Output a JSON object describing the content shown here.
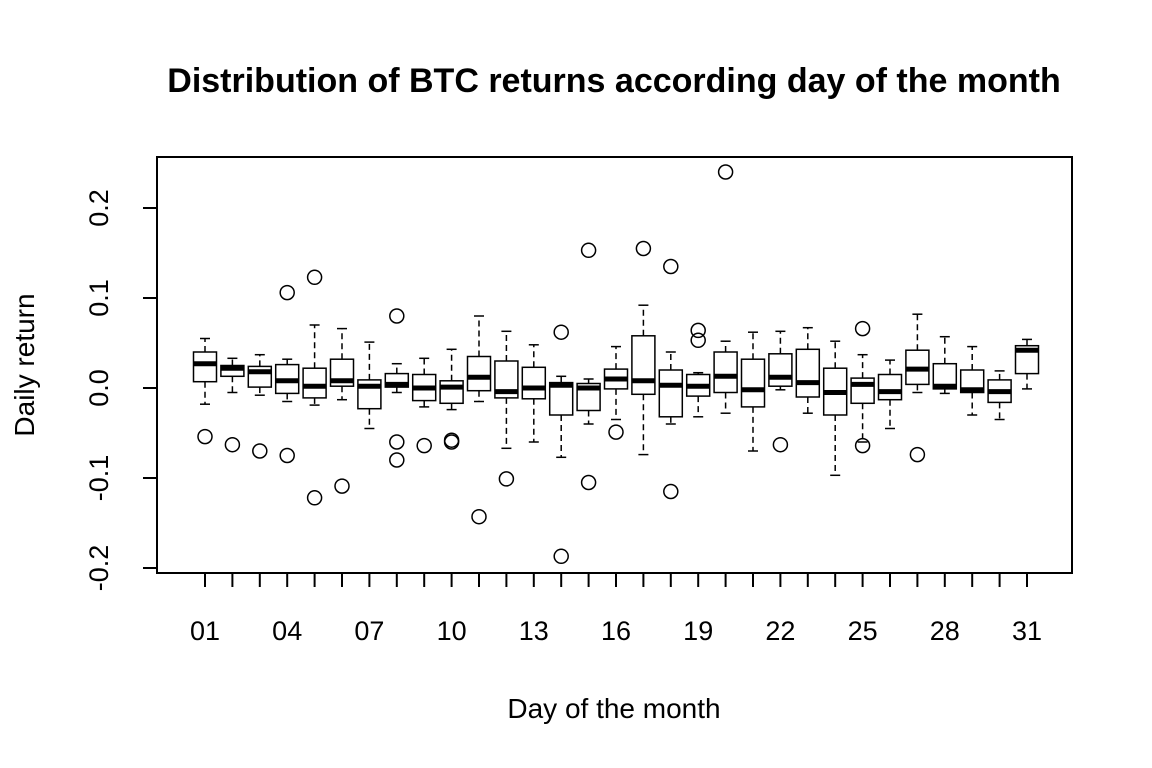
{
  "chart_data": {
    "type": "boxplot",
    "title": "Distribution of BTC returns according day of the month",
    "xlabel": "Day of the month",
    "ylabel": "Daily return",
    "ylim": [
      -0.2,
      0.24
    ],
    "y_ticks": [
      "-0.2",
      "-0.1",
      "0.0",
      "0.1",
      "0.2"
    ],
    "y_tick_values": [
      -0.2,
      -0.1,
      0.0,
      0.1,
      0.2
    ],
    "x_tick_labels": [
      "01",
      "04",
      "07",
      "10",
      "13",
      "16",
      "19",
      "22",
      "25",
      "28",
      "31"
    ],
    "legend": "none",
    "grid": false,
    "boxes": [
      {
        "day": "01",
        "wlo": -0.018,
        "q1": 0.007,
        "med": 0.027,
        "q3": 0.04,
        "whi": 0.055,
        "outliers": [
          -0.054
        ]
      },
      {
        "day": "02",
        "wlo": -0.005,
        "q1": 0.013,
        "med": 0.022,
        "q3": 0.025,
        "whi": 0.033,
        "outliers": [
          -0.063
        ]
      },
      {
        "day": "03",
        "wlo": -0.008,
        "q1": 0.001,
        "med": 0.018,
        "q3": 0.024,
        "whi": 0.037,
        "outliers": [
          -0.07
        ]
      },
      {
        "day": "04",
        "wlo": -0.015,
        "q1": -0.006,
        "med": 0.008,
        "q3": 0.026,
        "whi": 0.032,
        "outliers": [
          0.106,
          -0.075
        ]
      },
      {
        "day": "05",
        "wlo": -0.019,
        "q1": -0.011,
        "med": 0.002,
        "q3": 0.022,
        "whi": 0.07,
        "outliers": [
          0.123,
          -0.122
        ]
      },
      {
        "day": "06",
        "wlo": -0.013,
        "q1": 0.002,
        "med": 0.008,
        "q3": 0.032,
        "whi": 0.066,
        "outliers": [
          -0.109
        ]
      },
      {
        "day": "07",
        "wlo": -0.045,
        "q1": -0.023,
        "med": 0.002,
        "q3": 0.009,
        "whi": 0.051,
        "outliers": []
      },
      {
        "day": "08",
        "wlo": -0.005,
        "q1": 0.001,
        "med": 0.004,
        "q3": 0.016,
        "whi": 0.027,
        "outliers": [
          0.08,
          -0.06,
          -0.08
        ]
      },
      {
        "day": "09",
        "wlo": -0.021,
        "q1": -0.014,
        "med": 0.0,
        "q3": 0.015,
        "whi": 0.033,
        "outliers": [
          -0.064
        ]
      },
      {
        "day": "10",
        "wlo": -0.024,
        "q1": -0.017,
        "med": 0.001,
        "q3": 0.008,
        "whi": 0.043,
        "outliers": [
          -0.058,
          -0.06
        ]
      },
      {
        "day": "11",
        "wlo": -0.015,
        "q1": -0.003,
        "med": 0.012,
        "q3": 0.035,
        "whi": 0.08,
        "outliers": [
          -0.143
        ]
      },
      {
        "day": "12",
        "wlo": -0.067,
        "q1": -0.011,
        "med": -0.004,
        "q3": 0.03,
        "whi": 0.063,
        "outliers": [
          -0.101
        ]
      },
      {
        "day": "13",
        "wlo": -0.06,
        "q1": -0.012,
        "med": 0.0,
        "q3": 0.023,
        "whi": 0.048,
        "outliers": []
      },
      {
        "day": "14",
        "wlo": -0.077,
        "q1": -0.03,
        "med": 0.003,
        "q3": 0.006,
        "whi": 0.013,
        "outliers": [
          0.062,
          -0.187
        ]
      },
      {
        "day": "15",
        "wlo": -0.04,
        "q1": -0.025,
        "med": 0.0,
        "q3": 0.005,
        "whi": 0.01,
        "outliers": [
          0.153,
          -0.105
        ]
      },
      {
        "day": "16",
        "wlo": -0.035,
        "q1": -0.001,
        "med": 0.01,
        "q3": 0.021,
        "whi": 0.046,
        "outliers": [
          -0.049
        ]
      },
      {
        "day": "17",
        "wlo": -0.074,
        "q1": -0.007,
        "med": 0.008,
        "q3": 0.058,
        "whi": 0.092,
        "outliers": [
          0.155
        ]
      },
      {
        "day": "18",
        "wlo": -0.04,
        "q1": -0.032,
        "med": 0.003,
        "q3": 0.02,
        "whi": 0.04,
        "outliers": [
          0.135,
          -0.115
        ]
      },
      {
        "day": "19",
        "wlo": -0.032,
        "q1": -0.009,
        "med": 0.002,
        "q3": 0.015,
        "whi": 0.017,
        "outliers": [
          0.064,
          0.053
        ]
      },
      {
        "day": "20",
        "wlo": -0.028,
        "q1": -0.005,
        "med": 0.013,
        "q3": 0.04,
        "whi": 0.052,
        "outliers": [
          0.24
        ]
      },
      {
        "day": "21",
        "wlo": -0.07,
        "q1": -0.021,
        "med": -0.002,
        "q3": 0.032,
        "whi": 0.062,
        "outliers": []
      },
      {
        "day": "22",
        "wlo": -0.002,
        "q1": 0.002,
        "med": 0.012,
        "q3": 0.038,
        "whi": 0.063,
        "outliers": [
          -0.063
        ]
      },
      {
        "day": "23",
        "wlo": -0.028,
        "q1": -0.01,
        "med": 0.006,
        "q3": 0.043,
        "whi": 0.067,
        "outliers": []
      },
      {
        "day": "24",
        "wlo": -0.097,
        "q1": -0.03,
        "med": -0.005,
        "q3": 0.022,
        "whi": 0.052,
        "outliers": []
      },
      {
        "day": "25",
        "wlo": -0.06,
        "q1": -0.017,
        "med": 0.004,
        "q3": 0.011,
        "whi": 0.037,
        "outliers": [
          0.066,
          -0.064
        ]
      },
      {
        "day": "26",
        "wlo": -0.045,
        "q1": -0.013,
        "med": -0.004,
        "q3": 0.015,
        "whi": 0.031,
        "outliers": []
      },
      {
        "day": "27",
        "wlo": -0.005,
        "q1": 0.004,
        "med": 0.021,
        "q3": 0.042,
        "whi": 0.082,
        "outliers": [
          -0.074
        ]
      },
      {
        "day": "28",
        "wlo": -0.006,
        "q1": -0.001,
        "med": 0.002,
        "q3": 0.027,
        "whi": 0.057,
        "outliers": []
      },
      {
        "day": "29",
        "wlo": -0.03,
        "q1": -0.005,
        "med": -0.002,
        "q3": 0.02,
        "whi": 0.046,
        "outliers": []
      },
      {
        "day": "30",
        "wlo": -0.035,
        "q1": -0.016,
        "med": -0.004,
        "q3": 0.009,
        "whi": 0.019,
        "outliers": []
      },
      {
        "day": "31",
        "wlo": -0.001,
        "q1": 0.016,
        "med": 0.042,
        "q3": 0.047,
        "whi": 0.054,
        "outliers": []
      }
    ]
  }
}
